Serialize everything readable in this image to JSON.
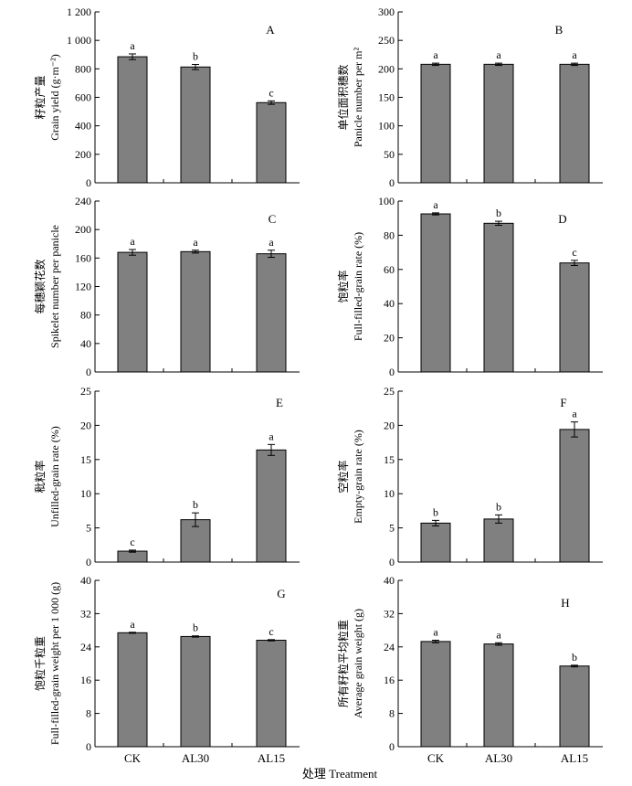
{
  "x_axis_title": "处理 Treatment",
  "chart_data": [
    {
      "panel": "A",
      "type": "bar",
      "categories": [
        "CK",
        "AL30",
        "AL15"
      ],
      "values": [
        885,
        813,
        563
      ],
      "errors": [
        20,
        18,
        12
      ],
      "letters": [
        "a",
        "b",
        "c"
      ],
      "ylabel_cn": "籽粒产量",
      "ylabel_en": "Grain yield (g·m⁻²)",
      "ylim": [
        0,
        1200
      ],
      "yticks": [
        0,
        200,
        400,
        600,
        800,
        1000,
        1200
      ],
      "ytick_labels": [
        "0",
        "200",
        "400",
        "600",
        "800",
        "1 000",
        "1 200"
      ]
    },
    {
      "panel": "B",
      "type": "bar",
      "categories": [
        "CK",
        "AL30",
        "AL15"
      ],
      "values": [
        208,
        208,
        208
      ],
      "errors": [
        2,
        2,
        2
      ],
      "letters": [
        "a",
        "a",
        "a"
      ],
      "ylabel_cn": "单位面积穗数",
      "ylabel_en": "Panicle number per m²",
      "ylim": [
        0,
        300
      ],
      "yticks": [
        0,
        50,
        100,
        150,
        200,
        250,
        300
      ],
      "ytick_labels": [
        "0",
        "50",
        "100",
        "150",
        "200",
        "250",
        "300"
      ]
    },
    {
      "panel": "C",
      "type": "bar",
      "categories": [
        "CK",
        "AL30",
        "AL15"
      ],
      "values": [
        168,
        169,
        166
      ],
      "errors": [
        4,
        2,
        5
      ],
      "letters": [
        "a",
        "a",
        "a"
      ],
      "ylabel_cn": "每穗颖花数",
      "ylabel_en": "Spikelet number per panicle",
      "ylim": [
        0,
        240
      ],
      "yticks": [
        0,
        40,
        80,
        120,
        160,
        200,
        240
      ],
      "ytick_labels": [
        "0",
        "40",
        "80",
        "120",
        "160",
        "200",
        "240"
      ]
    },
    {
      "panel": "D",
      "type": "bar",
      "categories": [
        "CK",
        "AL30",
        "AL15"
      ],
      "values": [
        92.5,
        87,
        63.8
      ],
      "errors": [
        0.6,
        1.2,
        1.5
      ],
      "letters": [
        "a",
        "b",
        "c"
      ],
      "ylabel_cn": "饱粒率",
      "ylabel_en": "Full-filled-grain rate (%)",
      "ylim": [
        0,
        100
      ],
      "yticks": [
        0,
        20,
        40,
        60,
        80,
        100
      ],
      "ytick_labels": [
        "0",
        "20",
        "40",
        "60",
        "80",
        "100"
      ]
    },
    {
      "panel": "E",
      "type": "bar",
      "categories": [
        "CK",
        "AL30",
        "AL15"
      ],
      "values": [
        1.6,
        6.2,
        16.4
      ],
      "errors": [
        0.15,
        1.0,
        0.8
      ],
      "letters": [
        "c",
        "b",
        "a"
      ],
      "ylabel_cn": "秕粒率",
      "ylabel_en": "Unfilled-grain rate (%)",
      "ylim": [
        0,
        25
      ],
      "yticks": [
        0,
        5,
        10,
        15,
        20,
        25
      ],
      "ytick_labels": [
        "0",
        "5",
        "10",
        "15",
        "20",
        "25"
      ]
    },
    {
      "panel": "F",
      "type": "bar",
      "categories": [
        "CK",
        "AL30",
        "AL15"
      ],
      "values": [
        5.7,
        6.3,
        19.4
      ],
      "errors": [
        0.4,
        0.6,
        1.1
      ],
      "letters": [
        "b",
        "b",
        "a"
      ],
      "ylabel_cn": "空粒率",
      "ylabel_en": "Empty-grain rate (%)",
      "ylim": [
        0,
        25
      ],
      "yticks": [
        0,
        5,
        10,
        15,
        20,
        25
      ],
      "ytick_labels": [
        "0",
        "5",
        "10",
        "15",
        "20",
        "25"
      ]
    },
    {
      "panel": "G",
      "type": "bar",
      "categories": [
        "CK",
        "AL30",
        "AL15"
      ],
      "values": [
        27.4,
        26.5,
        25.6
      ],
      "errors": [
        0.12,
        0.15,
        0.15
      ],
      "letters": [
        "a",
        "b",
        "c"
      ],
      "ylabel_cn": "饱粒千粒重",
      "ylabel_en": "Full-filled-grain weight per 1 000 (g)",
      "ylim": [
        0,
        40
      ],
      "yticks": [
        0,
        8,
        16,
        24,
        32,
        40
      ],
      "ytick_labels": [
        "0",
        "8",
        "16",
        "24",
        "32",
        "40"
      ]
    },
    {
      "panel": "H",
      "type": "bar",
      "categories": [
        "CK",
        "AL30",
        "AL15"
      ],
      "values": [
        25.3,
        24.7,
        19.4
      ],
      "errors": [
        0.3,
        0.3,
        0.2
      ],
      "letters": [
        "a",
        "a",
        "b"
      ],
      "ylabel_cn": "所有籽粒平均粒重",
      "ylabel_en": "Average grain weight (g)",
      "ylim": [
        0,
        40
      ],
      "yticks": [
        0,
        8,
        16,
        24,
        32,
        40
      ],
      "ytick_labels": [
        "0",
        "8",
        "16",
        "24",
        "32",
        "40"
      ]
    }
  ]
}
